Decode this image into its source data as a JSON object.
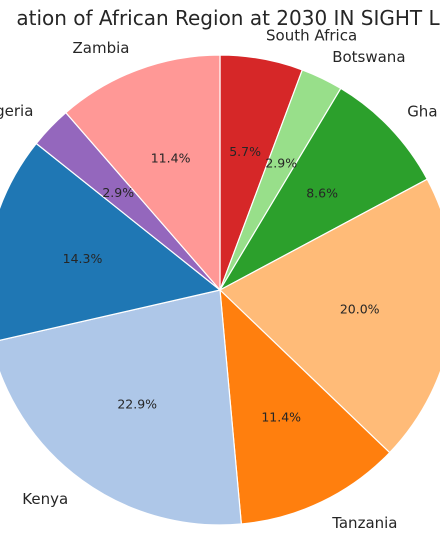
{
  "chart_data": {
    "type": "pie",
    "title": "ation of African Region at 2030 IN SIGHT L",
    "start_angle_deg": 90,
    "direction": "clockwise",
    "slices": [
      {
        "label": "South Africa",
        "value": 5.7,
        "pct_label": "5.7%",
        "color": "#d62728"
      },
      {
        "label": "Botswana",
        "value": 2.9,
        "pct_label": "2.9%",
        "color": "#98df8a"
      },
      {
        "label": "Gha",
        "value": 8.6,
        "pct_label": "8.6%",
        "color": "#2ca02c"
      },
      {
        "label": "",
        "value": 20.0,
        "pct_label": "20.0%",
        "color": "#ffbb78"
      },
      {
        "label": "Tanzania",
        "value": 11.4,
        "pct_label": "11.4%",
        "color": "#ff7f0e"
      },
      {
        "label": "Kenya",
        "value": 22.9,
        "pct_label": "22.9%",
        "color": "#aec7e8"
      },
      {
        "label": "",
        "value": 14.3,
        "pct_label": "14.3%",
        "color": "#1f77b4"
      },
      {
        "label": "geria",
        "value": 2.9,
        "pct_label": "2.9%",
        "color": "#9467bd"
      },
      {
        "label": "Zambia",
        "value": 11.4,
        "pct_label": "11.4%",
        "color": "#ff9896"
      }
    ]
  }
}
